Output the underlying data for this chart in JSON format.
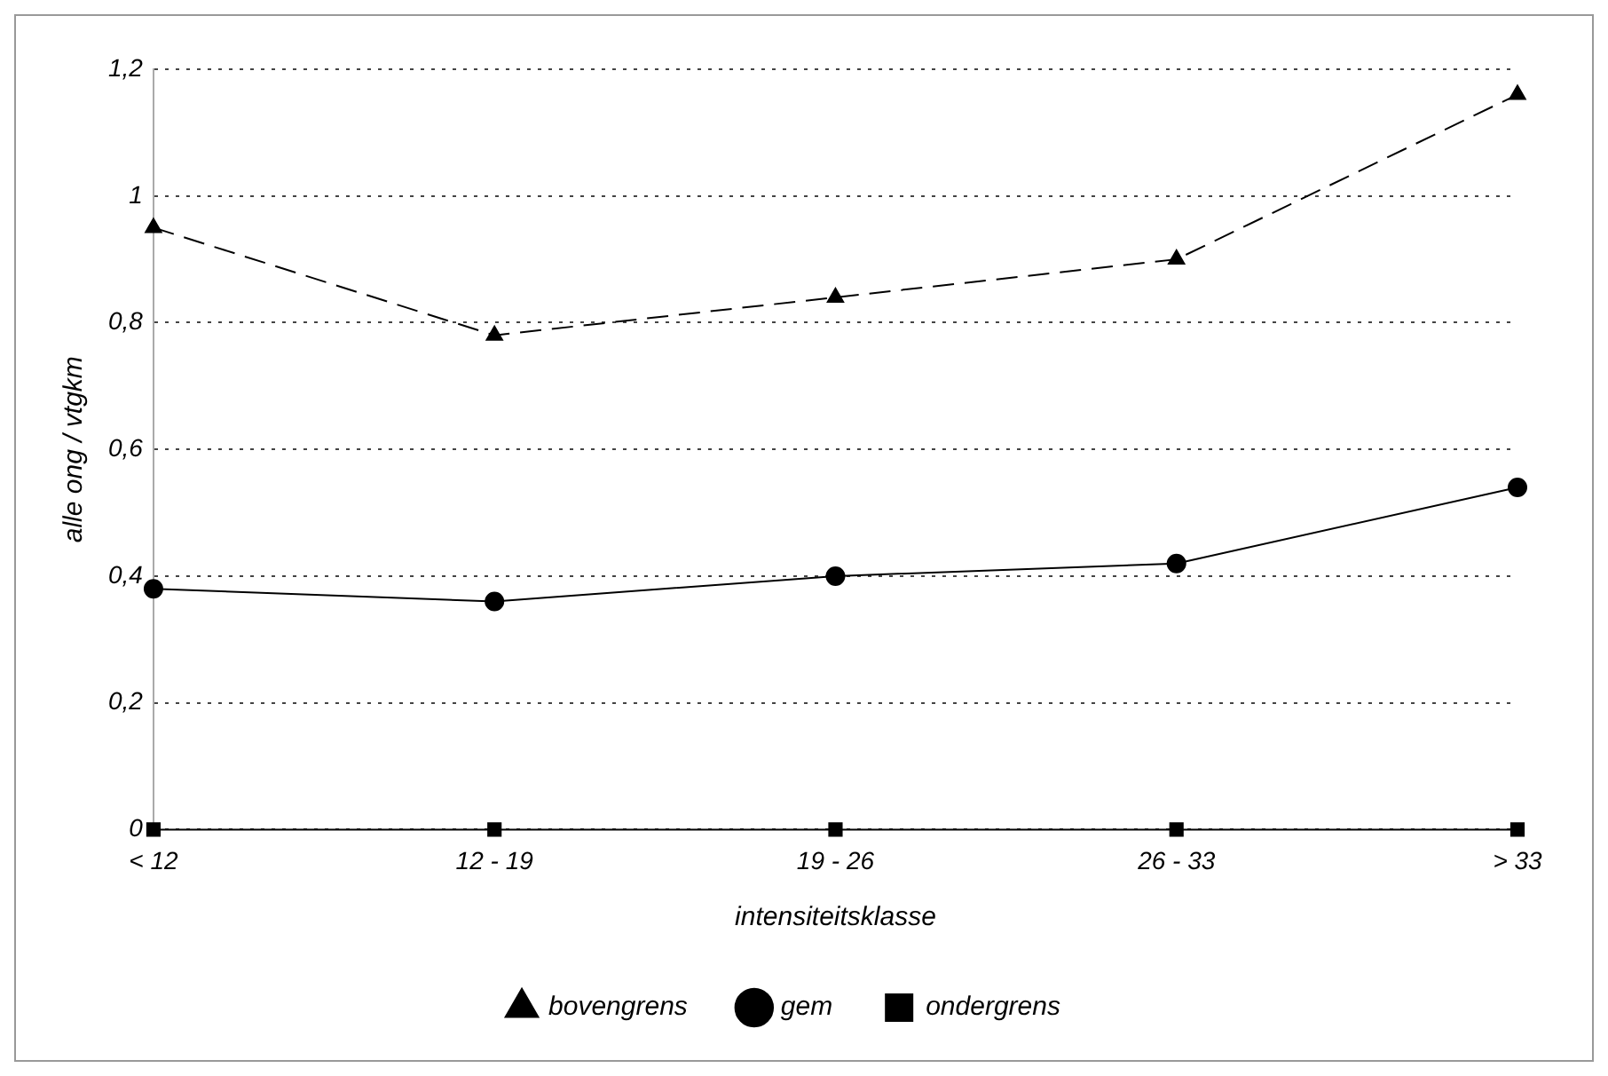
{
  "chart_data": {
    "type": "line",
    "xlabel": "intensiteitsklasse",
    "ylabel": "alle ong / vtgkm",
    "categories": [
      "< 12",
      "12 - 19",
      "19 - 26",
      "26 - 33",
      "> 33"
    ],
    "series": [
      {
        "name": "bovengrens",
        "color": "#000000",
        "values": [
          0.95,
          0.78,
          0.84,
          0.9,
          1.16
        ],
        "marker": "triangle",
        "line_style": "dashed"
      },
      {
        "name": "gem",
        "color": "#000000",
        "values": [
          0.38,
          0.36,
          0.4,
          0.42,
          0.54
        ],
        "marker": "circle",
        "line_style": "solid"
      },
      {
        "name": "ondergrens",
        "color": "#000000",
        "values": [
          0,
          0,
          0,
          0,
          0
        ],
        "marker": "square",
        "line_style": "solid"
      }
    ],
    "ylim": [
      0,
      1.2
    ],
    "yticks": [
      0,
      {
        "value": 0.2,
        "label": "0,2"
      },
      {
        "value": 0.4,
        "label": "0,4"
      },
      {
        "value": 0.6,
        "label": "0,6"
      },
      {
        "value": 0.8,
        "label": "0,8"
      },
      1,
      {
        "value": 1.2,
        "label": "1,2"
      }
    ],
    "grid": "y",
    "legend": "bottom"
  }
}
